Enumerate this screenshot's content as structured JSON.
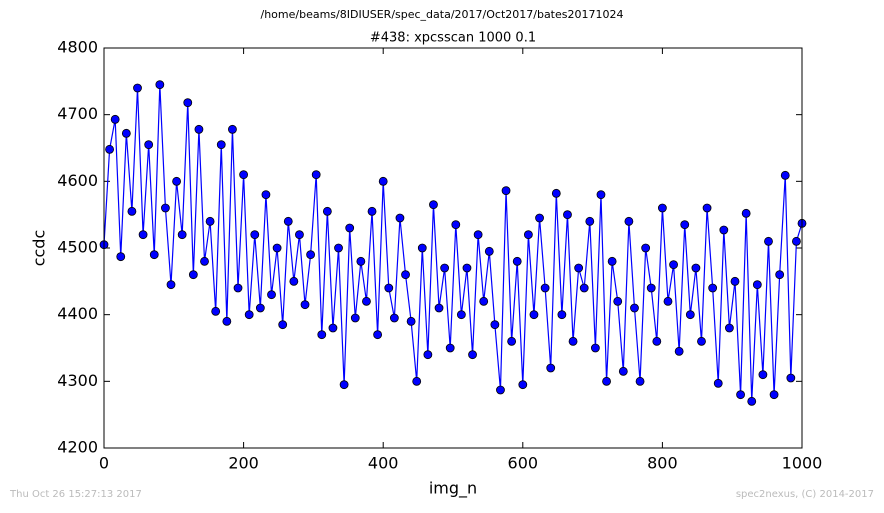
{
  "chart_data": {
    "type": "line",
    "suptitle": "/home/beams/8IDIUSER/spec_data/2017/Oct2017/bates20171024",
    "title": "#438: xpcsscan 1000 0.1",
    "xlabel": "img_n",
    "ylabel": "ccdc",
    "footer_left": "Thu Oct 26 15:27:13 2017",
    "footer_right": "spec2nexus, (C) 2014-2017",
    "xlim": [
      0,
      1000
    ],
    "ylim": [
      4200,
      4800
    ],
    "xticks": [
      0,
      200,
      400,
      600,
      800,
      1000
    ],
    "yticks": [
      4200,
      4300,
      4400,
      4500,
      4600,
      4700,
      4800
    ],
    "x": [
      0,
      8,
      16,
      24,
      32,
      40,
      48,
      56,
      64,
      72,
      80,
      88,
      96,
      104,
      112,
      120,
      128,
      136,
      144,
      152,
      160,
      168,
      176,
      184,
      192,
      200,
      208,
      216,
      224,
      232,
      240,
      248,
      256,
      264,
      272,
      280,
      288,
      296,
      304,
      312,
      320,
      328,
      336,
      344,
      352,
      360,
      368,
      376,
      384,
      392,
      400,
      408,
      416,
      424,
      432,
      440,
      448,
      456,
      464,
      472,
      480,
      488,
      496,
      504,
      512,
      520,
      528,
      536,
      544,
      552,
      560,
      568,
      576,
      584,
      592,
      600,
      608,
      616,
      624,
      632,
      640,
      648,
      656,
      664,
      672,
      680,
      688,
      696,
      704,
      712,
      720,
      728,
      736,
      744,
      752,
      760,
      768,
      776,
      784,
      792,
      800,
      808,
      816,
      824,
      832,
      840,
      848,
      856,
      864,
      872,
      880,
      888,
      896,
      904,
      912,
      920,
      928,
      936,
      944,
      952,
      960,
      968,
      976,
      984,
      992,
      1000
    ],
    "series": [
      {
        "color": "#0000ff",
        "values": [
          4505,
          4648,
          4693,
          4487,
          4672,
          4555,
          4740,
          4520,
          4655,
          4490,
          4745,
          4560,
          4445,
          4600,
          4520,
          4718,
          4460,
          4678,
          4480,
          4540,
          4405,
          4655,
          4390,
          4678,
          4440,
          4610,
          4400,
          4520,
          4410,
          4580,
          4430,
          4500,
          4385,
          4540,
          4450,
          4520,
          4415,
          4490,
          4610,
          4370,
          4555,
          4380,
          4500,
          4295,
          4530,
          4395,
          4480,
          4420,
          4555,
          4370,
          4600,
          4440,
          4395,
          4545,
          4460,
          4390,
          4300,
          4500,
          4340,
          4565,
          4410,
          4470,
          4350,
          4535,
          4400,
          4470,
          4340,
          4520,
          4420,
          4495,
          4385,
          4287,
          4586,
          4360,
          4480,
          4295,
          4520,
          4400,
          4545,
          4440,
          4320,
          4582,
          4400,
          4550,
          4360,
          4470,
          4440,
          4540,
          4350,
          4580,
          4300,
          4480,
          4420,
          4315,
          4540,
          4410,
          4300,
          4500,
          4440,
          4360,
          4560,
          4420,
          4475,
          4345,
          4535,
          4400,
          4470,
          4360,
          4560,
          4440,
          4297,
          4527,
          4380,
          4450,
          4280,
          4552,
          4270,
          4445,
          4310,
          4510,
          4280,
          4460,
          4609,
          4305,
          4510,
          4537
        ]
      }
    ]
  }
}
